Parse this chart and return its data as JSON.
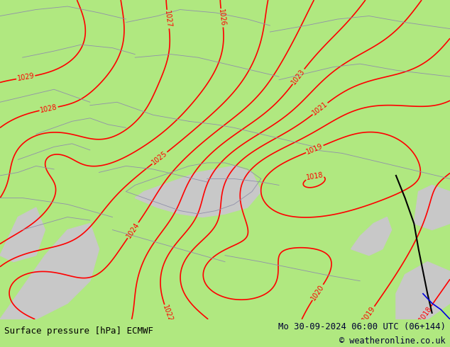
{
  "title_left": "Surface pressure [hPa] ECMWF",
  "title_right": "Mo 30-09-2024 06:00 UTC (06+144)",
  "copyright": "© weatheronline.co.uk",
  "background_color": "#b0e880",
  "sea_color": "#c8c8c8",
  "contour_color": "#ff0000",
  "border_color": "#9090aa",
  "river_color": "#0000dd",
  "bottom_bar_color": "#ffffff",
  "text_color_left": "#000000",
  "text_color_right": "#000033",
  "figsize": [
    6.34,
    4.9
  ],
  "dpi": 100
}
